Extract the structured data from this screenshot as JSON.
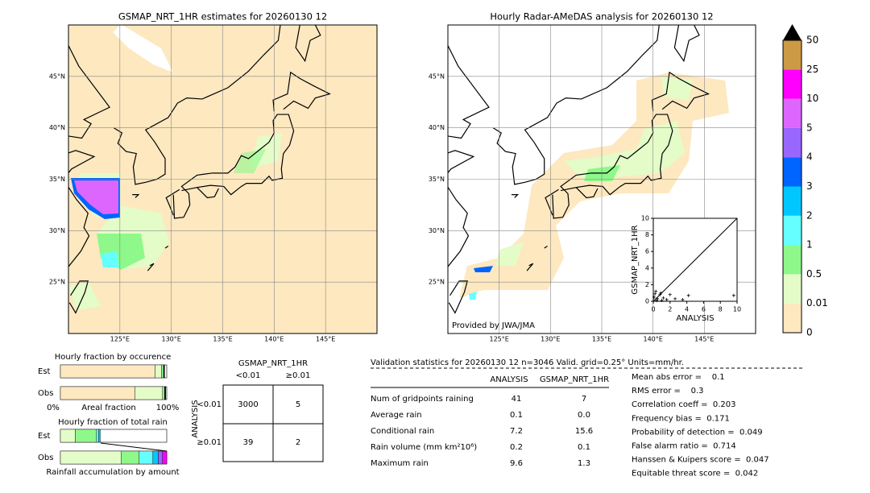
{
  "maps": [
    {
      "title": "GSMAP_NRT_1HR estimates for 20260130 12",
      "lat_labels": [
        "45°N",
        "40°N",
        "35°N",
        "30°N",
        "25°N"
      ],
      "lon_labels": [
        "125°E",
        "130°E",
        "135°E",
        "140°E",
        "145°E"
      ]
    },
    {
      "title": "Hourly Radar-AMeDAS analysis for 20260130 12",
      "lat_labels": [
        "45°N",
        "40°N",
        "35°N",
        "30°N",
        "25°N"
      ],
      "lon_labels": [
        "125°E",
        "130°E",
        "135°E",
        "140°E",
        "145°E"
      ],
      "credit": "Provided by JWA/JMA"
    }
  ],
  "colorbar": {
    "labels": [
      "0",
      "0.01",
      "0.5",
      "1",
      "2",
      "3",
      "4",
      "5",
      "10",
      "25",
      "50"
    ],
    "colors": [
      "#fde8c0",
      "#e4fcc8",
      "#8ef88a",
      "#66ffff",
      "#00c8ff",
      "#0064ff",
      "#9966ff",
      "#dd66ff",
      "#ff00ff",
      "#cc9944"
    ],
    "extend_color": "#000000"
  },
  "scatter": {
    "type": "scatter",
    "xlabel": "ANALYSIS",
    "ylabel": "GSMAP_NRT_1HR",
    "xlim": [
      0,
      10
    ],
    "ylim": [
      0,
      10
    ],
    "xticks": [
      0,
      2,
      4,
      6,
      8,
      10
    ],
    "yticks": [
      0,
      2,
      4,
      6,
      8,
      10
    ],
    "x": [
      0.1,
      0.3,
      0.5,
      0.8,
      1.2,
      1.6,
      2.0,
      0.9,
      3.5,
      4.2,
      9.6,
      0.4,
      1.0,
      0.2,
      2.6
    ],
    "y": [
      0.5,
      1.2,
      0.3,
      0.8,
      0.4,
      0.2,
      0.8,
      1.0,
      0.2,
      0.7,
      0.7,
      0.1,
      0.1,
      0.9,
      0.3
    ]
  },
  "fraction_occurrence": {
    "title": "Hourly fraction by occurence",
    "rows": [
      "Est",
      "Obs"
    ],
    "x_labels": [
      "0%",
      "Areal fraction",
      "100%"
    ],
    "colors": [
      "#fde8c0",
      "#e4fcc8",
      "#8ef88a",
      "#000000"
    ],
    "values": [
      [
        0.89,
        0.06,
        0.02,
        0.01
      ],
      [
        0.7,
        0.26,
        0.02,
        0.01
      ]
    ]
  },
  "fraction_total": {
    "title": "Hourly fraction of total rain",
    "rows": [
      "Est",
      "Obs"
    ],
    "x_label": "Rainfall accumulation by amount",
    "colors": [
      "#e4fcc8",
      "#8ef88a",
      "#66ffff",
      "#00c8ff",
      "#9966ff",
      "#ff00ff"
    ],
    "values": [
      [
        0.14,
        0.2,
        0.02,
        0.015,
        0,
        0
      ],
      [
        0.57,
        0.17,
        0.13,
        0.05,
        0.04,
        0.04
      ]
    ]
  },
  "contingency": {
    "title": "GSMAP_NRT_1HR",
    "columns": [
      "<0.01",
      "≥0.01"
    ],
    "side_label": "ANALYSIS",
    "rows": [
      {
        "label": "<0.01",
        "cells": [
          "3000",
          "5"
        ]
      },
      {
        "label": "≥0.01",
        "cells": [
          "39",
          "2"
        ]
      }
    ]
  },
  "validation": {
    "header": "Validation statistics for 20260130 12  n=3046 Valid. grid=0.25° Units=mm/hr.",
    "columns": [
      "ANALYSIS",
      "GSMAP_NRT_1HR"
    ],
    "rows": [
      [
        "Num of gridpoints raining",
        "41",
        "7"
      ],
      [
        "Average rain",
        "0.1",
        "0.0"
      ],
      [
        "Conditional rain",
        "7.2",
        "15.6"
      ],
      [
        "Rain volume (mm km²10⁶)",
        "0.2",
        "0.1"
      ],
      [
        "Maximum rain",
        "9.6",
        "1.3"
      ]
    ],
    "scores": [
      "Mean abs error =    0.1",
      "RMS error =    0.3",
      "Correlation coeff =  0.203",
      "Frequency bias =  0.171",
      "Probability of detection =  0.049",
      "False alarm ratio =  0.714",
      "Hanssen & Kuipers score =  0.047",
      "Equitable threat score =  0.042"
    ]
  }
}
